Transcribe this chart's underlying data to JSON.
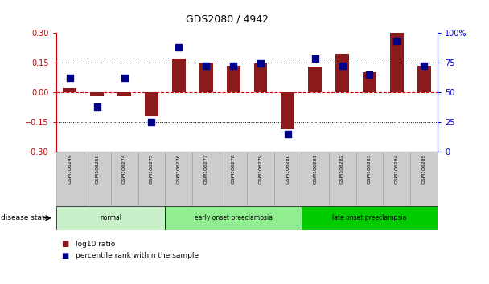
{
  "title": "GDS2080 / 4942",
  "samples": [
    "GSM106249",
    "GSM106250",
    "GSM106274",
    "GSM106275",
    "GSM106276",
    "GSM106277",
    "GSM106278",
    "GSM106279",
    "GSM106280",
    "GSM106281",
    "GSM106282",
    "GSM106283",
    "GSM106284",
    "GSM106285"
  ],
  "log10_ratio": [
    0.02,
    -0.02,
    -0.02,
    -0.12,
    0.17,
    0.15,
    0.135,
    0.145,
    -0.185,
    0.13,
    0.195,
    0.1,
    0.3,
    0.135
  ],
  "percentile_rank": [
    62,
    38,
    62,
    25,
    88,
    72,
    72,
    74,
    15,
    78,
    72,
    65,
    93,
    72
  ],
  "bar_color": "#8B1A1A",
  "dot_color": "#00008B",
  "groups": [
    {
      "label": "normal",
      "start": 0,
      "end": 4,
      "color": "#c8f0c8"
    },
    {
      "label": "early onset preeclampsia",
      "start": 4,
      "end": 9,
      "color": "#90ee90"
    },
    {
      "label": "late onset preeclampsia",
      "start": 9,
      "end": 14,
      "color": "#00cc00"
    }
  ],
  "ylim_left": [
    -0.3,
    0.3
  ],
  "ylim_right": [
    0,
    100
  ],
  "yticks_left": [
    -0.3,
    -0.15,
    0,
    0.15,
    0.3
  ],
  "yticks_right": [
    0,
    25,
    50,
    75,
    100
  ],
  "yticklabels_right": [
    "0",
    "25",
    "50",
    "75",
    "100%"
  ],
  "hlines_dotted": [
    0.15,
    -0.15
  ],
  "zero_line_color": "#cc0000",
  "tick_label_color_left": "#cc0000",
  "tick_label_color_right": "#0000cc",
  "bar_width": 0.5,
  "dot_size": 35,
  "legend_items": [
    {
      "label": "log10 ratio",
      "color": "#8B1A1A"
    },
    {
      "label": "percentile rank within the sample",
      "color": "#00008B"
    }
  ],
  "disease_state_label": "disease state",
  "background_color": "#ffffff",
  "sample_box_color": "#cccccc",
  "sample_box_edge_color": "#999999"
}
